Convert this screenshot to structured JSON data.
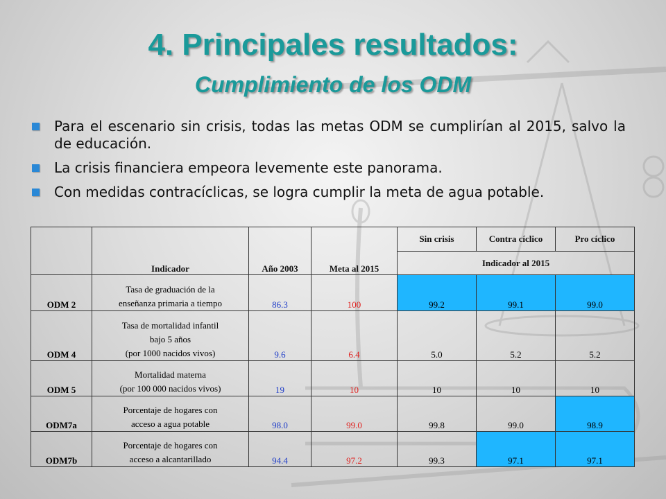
{
  "title": "4. Principales resultados:",
  "subtitle": "Cumplimiento de los ODM",
  "bullets": [
    "Para el escenario sin crisis, todas las metas ODM se cumplirían al 2015, salvo la de educación.",
    "La crisis financiera empeora levemente este panorama.",
    "Con medidas contracíclicas, se logra cumplir la meta de agua potable."
  ],
  "table": {
    "headers": {
      "indicador": "Indicador",
      "anio2003": "Año 2003",
      "meta2015": "Meta al 2015",
      "sin_crisis": "Sin crisis",
      "contra_ciclico": "Contra cíclico",
      "pro_ciclico": "Pro cíclico",
      "indicador_2015": "Indicador al 2015"
    },
    "rows": [
      {
        "odm": "ODM 2",
        "desc1": "Tasa de graduación de la",
        "desc2": "enseñanza primaria a tiempo",
        "desc3": "",
        "y2003": "86.3",
        "meta": "100",
        "sin": "99.2",
        "contra": "99.1",
        "pro": "99.0"
      },
      {
        "odm": "ODM 4",
        "desc1": "Tasa de mortalidad infantil",
        "desc2": "bajo 5 años",
        "desc3": "(por 1000 nacidos vivos)",
        "y2003": "9.6",
        "meta": "6.4",
        "sin": "5.0",
        "contra": "5.2",
        "pro": "5.2"
      },
      {
        "odm": "ODM 5",
        "desc1": "Mortalidad materna",
        "desc2": "(por 100 000 nacidos vivos)",
        "desc3": "",
        "y2003": "19",
        "meta": "10",
        "sin": "10",
        "contra": "10",
        "pro": "10"
      },
      {
        "odm": "ODM7a",
        "desc1": "Porcentaje de hogares con",
        "desc2": "acceso a agua potable",
        "desc3": "",
        "y2003": "98.0",
        "meta": "99.0",
        "sin": "99.8",
        "contra": "99.0",
        "pro": "98.9"
      },
      {
        "odm": "ODM7b",
        "desc1": "Porcentaje de hogares con",
        "desc2": "acceso a alcantarillado",
        "desc3": "",
        "y2003": "94.4",
        "meta": "97.2",
        "sin": "99.3",
        "contra": "97.1",
        "pro": "97.1"
      }
    ]
  },
  "colors": {
    "title": "#1a9a9a",
    "bullet": "#2a88d6",
    "highlight": "#1fb6ff",
    "year_value": "#1e3cc8",
    "meta_value": "#e0201e"
  }
}
